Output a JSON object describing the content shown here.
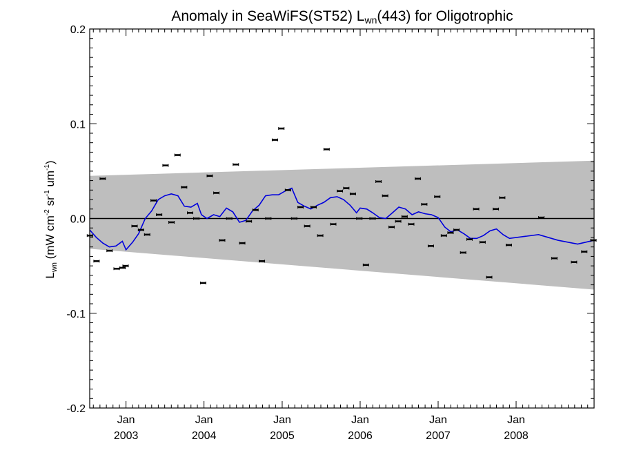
{
  "chart_data": {
    "type": "scatter",
    "title": {
      "pre": "Anomaly in SeaWiFS(ST52) L",
      "sub": "wn",
      "post": "(443) for Oligotrophic"
    },
    "xlabel": "",
    "ylabel": {
      "L": "L",
      "L_sub": "wn",
      "unit_a": " (mW cm",
      "exp1": "-2",
      "unit_b": " sr",
      "exp2": "-1",
      "unit_c": " um",
      "exp3": "-1",
      "close": ")"
    },
    "xlim": [
      "2002-07-15",
      "2008-12-31"
    ],
    "ylim": [
      -0.2,
      0.2
    ],
    "x_ticks": [
      {
        "date": "2003-01-01",
        "month": "Jan",
        "year": "2003"
      },
      {
        "date": "2004-01-01",
        "month": "Jan",
        "year": "2004"
      },
      {
        "date": "2005-01-01",
        "month": "Jan",
        "year": "2005"
      },
      {
        "date": "2006-01-01",
        "month": "Jan",
        "year": "2006"
      },
      {
        "date": "2007-01-01",
        "month": "Jan",
        "year": "2007"
      },
      {
        "date": "2008-01-01",
        "month": "Jan",
        "year": "2008"
      }
    ],
    "y_ticks": [
      {
        "value": 0.2,
        "label": "0.2"
      },
      {
        "value": 0.1,
        "label": "0.1"
      },
      {
        "value": 0.0,
        "label": "0.0"
      },
      {
        "value": -0.1,
        "label": "-0.1"
      },
      {
        "value": -0.2,
        "label": "-0.2"
      }
    ],
    "band": {
      "x": [
        "2002-07-15",
        "2008-12-31"
      ],
      "upper": [
        0.045,
        0.061
      ],
      "lower": [
        -0.032,
        -0.075
      ],
      "color": "#bebebe"
    },
    "zero_line": 0.0,
    "points": [
      {
        "x": "2002-07-16",
        "y": -0.018
      },
      {
        "x": "2002-08-16",
        "y": -0.045
      },
      {
        "x": "2002-09-14",
        "y": 0.042
      },
      {
        "x": "2002-10-16",
        "y": -0.034
      },
      {
        "x": "2002-11-18",
        "y": -0.053
      },
      {
        "x": "2002-12-16",
        "y": -0.052
      },
      {
        "x": "2002-12-30",
        "y": -0.05
      },
      {
        "x": "2003-02-10",
        "y": -0.008
      },
      {
        "x": "2003-03-12",
        "y": -0.012
      },
      {
        "x": "2003-04-10",
        "y": -0.017
      },
      {
        "x": "2003-05-10",
        "y": 0.019
      },
      {
        "x": "2003-06-05",
        "y": 0.004
      },
      {
        "x": "2003-07-05",
        "y": 0.056
      },
      {
        "x": "2003-08-02",
        "y": -0.004
      },
      {
        "x": "2003-08-30",
        "y": 0.067
      },
      {
        "x": "2003-09-30",
        "y": 0.033
      },
      {
        "x": "2003-10-28",
        "y": 0.006
      },
      {
        "x": "2003-11-26",
        "y": 0.0
      },
      {
        "x": "2003-12-28",
        "y": -0.068
      },
      {
        "x": "2004-01-28",
        "y": 0.045
      },
      {
        "x": "2004-02-28",
        "y": 0.027
      },
      {
        "x": "2004-03-26",
        "y": -0.023
      },
      {
        "x": "2004-04-28",
        "y": 0.0
      },
      {
        "x": "2004-05-29",
        "y": 0.057
      },
      {
        "x": "2004-06-28",
        "y": -0.026
      },
      {
        "x": "2004-07-29",
        "y": -0.003
      },
      {
        "x": "2004-08-29",
        "y": 0.009
      },
      {
        "x": "2004-09-28",
        "y": -0.045
      },
      {
        "x": "2004-10-28",
        "y": 0.0
      },
      {
        "x": "2004-11-28",
        "y": 0.083
      },
      {
        "x": "2004-12-28",
        "y": 0.095
      },
      {
        "x": "2005-01-28",
        "y": 0.03
      },
      {
        "x": "2005-02-26",
        "y": 0.0
      },
      {
        "x": "2005-03-28",
        "y": 0.012
      },
      {
        "x": "2005-04-28",
        "y": -0.008
      },
      {
        "x": "2005-05-28",
        "y": 0.012
      },
      {
        "x": "2005-06-28",
        "y": -0.018
      },
      {
        "x": "2005-07-28",
        "y": 0.073
      },
      {
        "x": "2005-08-28",
        "y": -0.006
      },
      {
        "x": "2005-09-28",
        "y": 0.029
      },
      {
        "x": "2005-10-28",
        "y": 0.032
      },
      {
        "x": "2005-11-28",
        "y": 0.026
      },
      {
        "x": "2005-12-28",
        "y": 0.0
      },
      {
        "x": "2006-01-28",
        "y": -0.049
      },
      {
        "x": "2006-02-28",
        "y": 0.0
      },
      {
        "x": "2006-03-28",
        "y": 0.039
      },
      {
        "x": "2006-04-28",
        "y": 0.024
      },
      {
        "x": "2006-05-28",
        "y": -0.009
      },
      {
        "x": "2006-06-28",
        "y": -0.003
      },
      {
        "x": "2006-07-28",
        "y": 0.002
      },
      {
        "x": "2006-08-28",
        "y": -0.006
      },
      {
        "x": "2006-09-28",
        "y": 0.042
      },
      {
        "x": "2006-10-28",
        "y": 0.015
      },
      {
        "x": "2006-11-28",
        "y": -0.029
      },
      {
        "x": "2006-12-28",
        "y": 0.023
      },
      {
        "x": "2007-01-28",
        "y": -0.018
      },
      {
        "x": "2007-02-28",
        "y": -0.015
      },
      {
        "x": "2007-03-28",
        "y": -0.012
      },
      {
        "x": "2007-04-28",
        "y": -0.036
      },
      {
        "x": "2007-05-28",
        "y": -0.022
      },
      {
        "x": "2007-06-28",
        "y": 0.01
      },
      {
        "x": "2007-07-28",
        "y": -0.025
      },
      {
        "x": "2007-08-28",
        "y": -0.062
      },
      {
        "x": "2007-09-28",
        "y": 0.01
      },
      {
        "x": "2007-10-28",
        "y": 0.022
      },
      {
        "x": "2007-11-28",
        "y": -0.028
      },
      {
        "x": "2008-04-28",
        "y": 0.001
      },
      {
        "x": "2008-06-28",
        "y": -0.042
      },
      {
        "x": "2008-09-28",
        "y": -0.046
      },
      {
        "x": "2008-11-15",
        "y": -0.035
      },
      {
        "x": "2008-12-28",
        "y": -0.023
      }
    ],
    "running_mean": {
      "color": "#0000dd",
      "points": [
        {
          "x": "2002-07-15",
          "y": -0.012
        },
        {
          "x": "2002-08-15",
          "y": -0.02
        },
        {
          "x": "2002-09-15",
          "y": -0.026
        },
        {
          "x": "2002-10-15",
          "y": -0.03
        },
        {
          "x": "2002-11-15",
          "y": -0.029
        },
        {
          "x": "2002-12-15",
          "y": -0.024
        },
        {
          "x": "2003-01-01",
          "y": -0.033
        },
        {
          "x": "2003-02-01",
          "y": -0.025
        },
        {
          "x": "2003-03-01",
          "y": -0.016
        },
        {
          "x": "2003-04-01",
          "y": 0.0
        },
        {
          "x": "2003-05-01",
          "y": 0.008
        },
        {
          "x": "2003-06-01",
          "y": 0.02
        },
        {
          "x": "2003-07-01",
          "y": 0.024
        },
        {
          "x": "2003-08-01",
          "y": 0.026
        },
        {
          "x": "2003-09-01",
          "y": 0.024
        },
        {
          "x": "2003-10-01",
          "y": 0.013
        },
        {
          "x": "2003-11-01",
          "y": 0.012
        },
        {
          "x": "2003-12-01",
          "y": 0.016
        },
        {
          "x": "2003-12-20",
          "y": 0.004
        },
        {
          "x": "2004-01-15",
          "y": 0.0
        },
        {
          "x": "2004-02-15",
          "y": 0.004
        },
        {
          "x": "2004-03-15",
          "y": 0.002
        },
        {
          "x": "2004-04-15",
          "y": 0.011
        },
        {
          "x": "2004-05-15",
          "y": 0.007
        },
        {
          "x": "2004-06-15",
          "y": -0.004
        },
        {
          "x": "2004-07-15",
          "y": -0.002
        },
        {
          "x": "2004-08-15",
          "y": 0.008
        },
        {
          "x": "2004-09-15",
          "y": 0.014
        },
        {
          "x": "2004-10-15",
          "y": 0.024
        },
        {
          "x": "2004-11-15",
          "y": 0.025
        },
        {
          "x": "2004-12-15",
          "y": 0.025
        },
        {
          "x": "2005-01-15",
          "y": 0.029
        },
        {
          "x": "2005-02-15",
          "y": 0.032
        },
        {
          "x": "2005-03-15",
          "y": 0.017
        },
        {
          "x": "2005-04-15",
          "y": 0.013
        },
        {
          "x": "2005-05-15",
          "y": 0.01
        },
        {
          "x": "2005-06-15",
          "y": 0.014
        },
        {
          "x": "2005-07-15",
          "y": 0.017
        },
        {
          "x": "2005-08-15",
          "y": 0.022
        },
        {
          "x": "2005-09-15",
          "y": 0.023
        },
        {
          "x": "2005-10-15",
          "y": 0.02
        },
        {
          "x": "2005-11-15",
          "y": 0.014
        },
        {
          "x": "2005-12-15",
          "y": 0.006
        },
        {
          "x": "2006-01-01",
          "y": 0.011
        },
        {
          "x": "2006-02-01",
          "y": 0.01
        },
        {
          "x": "2006-03-01",
          "y": 0.006
        },
        {
          "x": "2006-04-01",
          "y": 0.001
        },
        {
          "x": "2006-05-01",
          "y": 0.0
        },
        {
          "x": "2006-06-01",
          "y": 0.006
        },
        {
          "x": "2006-07-01",
          "y": 0.012
        },
        {
          "x": "2006-08-01",
          "y": 0.01
        },
        {
          "x": "2006-09-01",
          "y": 0.004
        },
        {
          "x": "2006-10-01",
          "y": 0.007
        },
        {
          "x": "2006-11-01",
          "y": 0.005
        },
        {
          "x": "2006-12-01",
          "y": 0.004
        },
        {
          "x": "2007-01-01",
          "y": 0.001
        },
        {
          "x": "2007-02-01",
          "y": -0.009
        },
        {
          "x": "2007-03-01",
          "y": -0.014
        },
        {
          "x": "2007-04-01",
          "y": -0.012
        },
        {
          "x": "2007-05-01",
          "y": -0.016
        },
        {
          "x": "2007-06-01",
          "y": -0.021
        },
        {
          "x": "2007-07-01",
          "y": -0.021
        },
        {
          "x": "2007-08-01",
          "y": -0.018
        },
        {
          "x": "2007-09-01",
          "y": -0.013
        },
        {
          "x": "2007-10-01",
          "y": -0.011
        },
        {
          "x": "2007-11-01",
          "y": -0.017
        },
        {
          "x": "2007-12-01",
          "y": -0.021
        },
        {
          "x": "2008-04-15",
          "y": -0.017
        },
        {
          "x": "2008-07-15",
          "y": -0.023
        },
        {
          "x": "2008-10-15",
          "y": -0.027
        },
        {
          "x": "2008-12-31",
          "y": -0.023
        }
      ]
    },
    "grid": false,
    "legend": "none"
  }
}
